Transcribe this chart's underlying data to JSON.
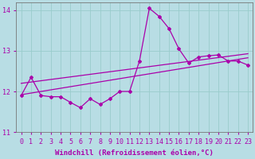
{
  "title": "",
  "xlabel": "Windchill (Refroidissement éolien,°C)",
  "ylabel": "",
  "bg_color": "#b8dde4",
  "line_color": "#aa00aa",
  "grid_color": "#99cccc",
  "xlim": [
    -0.5,
    23.5
  ],
  "ylim": [
    11,
    14.2
  ],
  "yticks": [
    11,
    12,
    13,
    14
  ],
  "xticks": [
    0,
    1,
    2,
    3,
    4,
    5,
    6,
    7,
    8,
    9,
    10,
    11,
    12,
    13,
    14,
    15,
    16,
    17,
    18,
    19,
    20,
    21,
    22,
    23
  ],
  "x": [
    0,
    1,
    2,
    3,
    4,
    5,
    6,
    7,
    8,
    9,
    10,
    11,
    12,
    13,
    14,
    15,
    16,
    17,
    18,
    19,
    20,
    21,
    22,
    23
  ],
  "y_main": [
    11.9,
    12.35,
    11.9,
    11.87,
    11.87,
    11.73,
    11.6,
    11.82,
    11.68,
    11.82,
    12.0,
    12.0,
    12.75,
    14.05,
    13.85,
    13.55,
    13.05,
    12.7,
    12.85,
    12.88,
    12.9,
    12.75,
    12.75,
    12.65
  ],
  "y_trend1_x": [
    0,
    23
  ],
  "y_trend1_y": [
    12.2,
    12.93
  ],
  "y_trend2_x": [
    0,
    23
  ],
  "y_trend2_y": [
    11.92,
    12.83
  ],
  "xlabel_fontsize": 6.5,
  "tick_fontsize": 6,
  "marker": "D",
  "markersize": 2.0,
  "linewidth": 0.9
}
